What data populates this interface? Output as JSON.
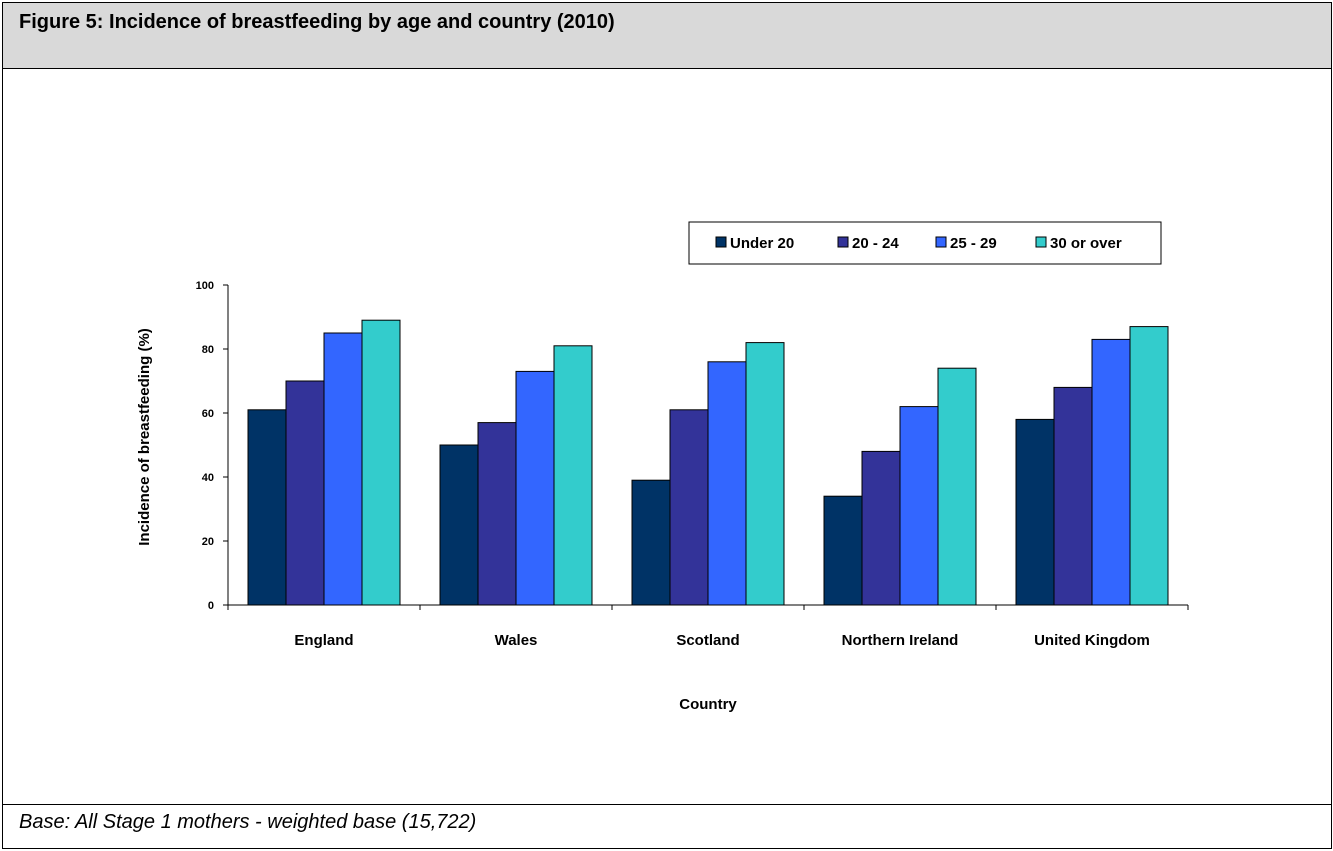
{
  "figure": {
    "title": "Figure 5: Incidence of breastfeeding by age and country (2010)",
    "footnote": "Base: All Stage 1 mothers - weighted base (15,722)"
  },
  "chart_data": {
    "type": "bar",
    "title": "Figure 5: Incidence of breastfeeding by age and country (2010)",
    "xlabel": "Country",
    "ylabel": "Incidence of breastfeeding (%)",
    "ylim": [
      0,
      100
    ],
    "yticks": [
      0,
      20,
      40,
      60,
      80,
      100
    ],
    "grid": false,
    "legend_position": "top-right",
    "categories": [
      "England",
      "Wales",
      "Scotland",
      "Northern Ireland",
      "United Kingdom"
    ],
    "series": [
      {
        "name": "Under 20",
        "color": "#003366",
        "values": [
          61,
          50,
          39,
          34,
          58
        ]
      },
      {
        "name": "20 - 24",
        "color": "#333399",
        "values": [
          70,
          57,
          61,
          48,
          68
        ]
      },
      {
        "name": "25 - 29",
        "color": "#3366ff",
        "values": [
          85,
          73,
          76,
          62,
          83
        ]
      },
      {
        "name": "30 or over",
        "color": "#33cccc",
        "values": [
          89,
          81,
          82,
          74,
          87
        ]
      }
    ]
  }
}
